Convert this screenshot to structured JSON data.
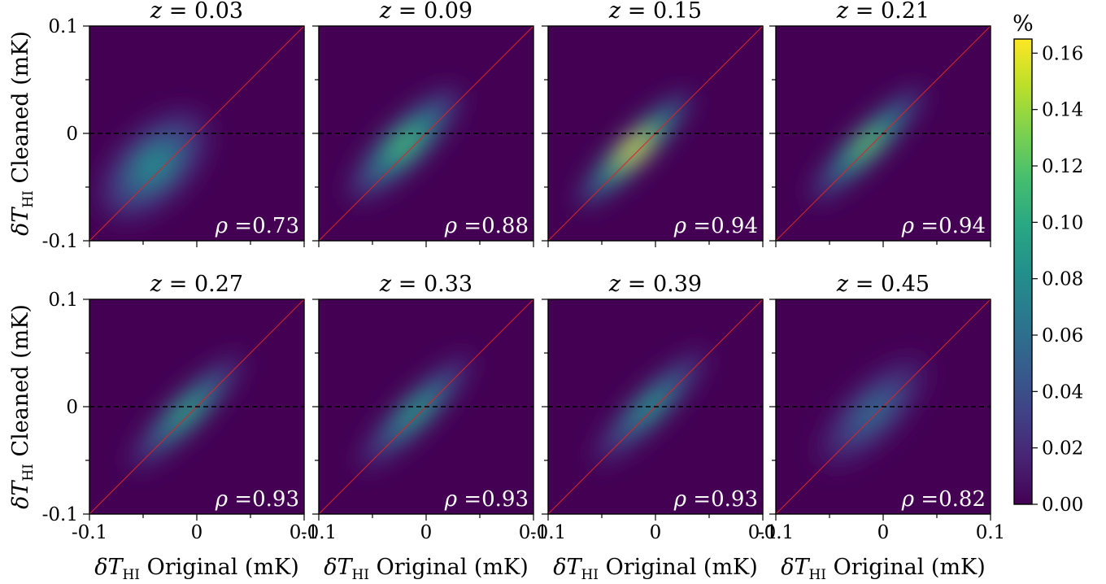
{
  "chart_data": {
    "type": "heatmap",
    "description_x": "δT_HI Original (mK)",
    "xlabel": {
      "prefix": "δT",
      "sub": "HI",
      "suffix": "Original (mK)"
    },
    "ylabel": {
      "prefix": "δT",
      "sub": "HI",
      "suffix": "Cleaned (mK)"
    },
    "xlim": [
      -0.1,
      0.1
    ],
    "ylim": [
      -0.1,
      0.1
    ],
    "xticks": [
      "-0.1",
      "0",
      "0.1"
    ],
    "yticks": [
      "-0.1",
      "0",
      "0.1"
    ],
    "colormap": "viridis",
    "colorbar": {
      "label": "%",
      "range": [
        0.0,
        0.165
      ],
      "ticks": [
        "0.00",
        "0.02",
        "0.04",
        "0.06",
        "0.08",
        "0.10",
        "0.12",
        "0.14",
        "0.16"
      ]
    },
    "reference_lines": [
      "y = x (red)",
      "y = 0 (black dashed)"
    ],
    "panels": [
      {
        "z": "0.03",
        "title": "z = 0.03",
        "rho": "0.73",
        "peak": 0.085,
        "center": [
          -0.04,
          -0.03
        ]
      },
      {
        "z": "0.09",
        "title": "z = 0.09",
        "rho": "0.88",
        "peak": 0.12,
        "center": [
          -0.02,
          -0.01
        ]
      },
      {
        "z": "0.15",
        "title": "z = 0.15",
        "rho": "0.94",
        "peak": 0.165,
        "center": [
          -0.02,
          -0.015
        ]
      },
      {
        "z": "0.21",
        "title": "z = 0.21",
        "rho": "0.94",
        "peak": 0.13,
        "center": [
          -0.015,
          -0.01
        ]
      },
      {
        "z": "0.27",
        "title": "z = 0.27",
        "rho": "0.93",
        "peak": 0.105,
        "center": [
          -0.01,
          -0.005
        ]
      },
      {
        "z": "0.33",
        "title": "z = 0.33",
        "rho": "0.93",
        "peak": 0.1,
        "center": [
          -0.01,
          -0.005
        ]
      },
      {
        "z": "0.39",
        "title": "z = 0.39",
        "rho": "0.93",
        "peak": 0.095,
        "center": [
          -0.005,
          0.0
        ]
      },
      {
        "z": "0.45",
        "title": "z = 0.45",
        "rho": "0.82",
        "peak": 0.06,
        "center": [
          -0.01,
          -0.005
        ]
      }
    ]
  }
}
